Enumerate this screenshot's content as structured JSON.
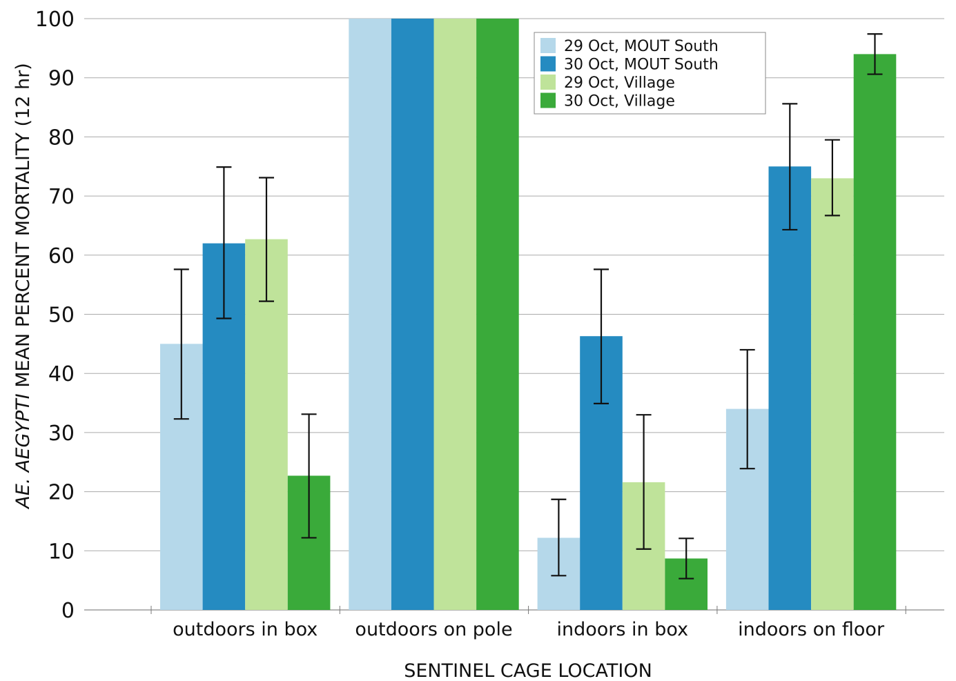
{
  "chart_data": {
    "type": "bar",
    "title": "",
    "xlabel": "SENTINEL CAGE LOCATION",
    "ylabel": {
      "italic_part": "AE. AEGYPTI",
      "rest": " MEAN PERCENT MORTALITY (12 hr)"
    },
    "ylim": [
      0,
      100
    ],
    "yticks": [
      0,
      10,
      20,
      30,
      40,
      50,
      60,
      70,
      80,
      90,
      100
    ],
    "grid": "horizontal",
    "legend_position": "top-right",
    "categories": [
      "outdoors in box",
      "outdoors on pole",
      "indoors in box",
      "indoors on floor"
    ],
    "series": [
      {
        "name": "29 Oct, MOUT South",
        "color": "#b5d8ea",
        "values": [
          45,
          100,
          12.2,
          34
        ],
        "error_low": [
          32.3,
          null,
          5.8,
          23.9
        ],
        "error_high": [
          57.6,
          null,
          18.7,
          44
        ]
      },
      {
        "name": "30 Oct, MOUT South",
        "color": "#258bc1",
        "values": [
          62,
          100,
          46.3,
          75
        ],
        "error_low": [
          49.3,
          null,
          34.9,
          64.3
        ],
        "error_high": [
          74.9,
          null,
          57.6,
          85.6
        ]
      },
      {
        "name": "29 Oct, Village",
        "color": "#bfe39a",
        "values": [
          62.7,
          100,
          21.6,
          73
        ],
        "error_low": [
          52.2,
          null,
          10.3,
          66.7
        ],
        "error_high": [
          73.1,
          null,
          33,
          79.5
        ]
      },
      {
        "name": "30 Oct, Village",
        "color": "#3aaa3a",
        "values": [
          22.7,
          100,
          8.7,
          94
        ],
        "error_low": [
          12.2,
          null,
          5.3,
          90.6
        ],
        "error_high": [
          33.1,
          null,
          12.1,
          97.4
        ]
      }
    ]
  }
}
